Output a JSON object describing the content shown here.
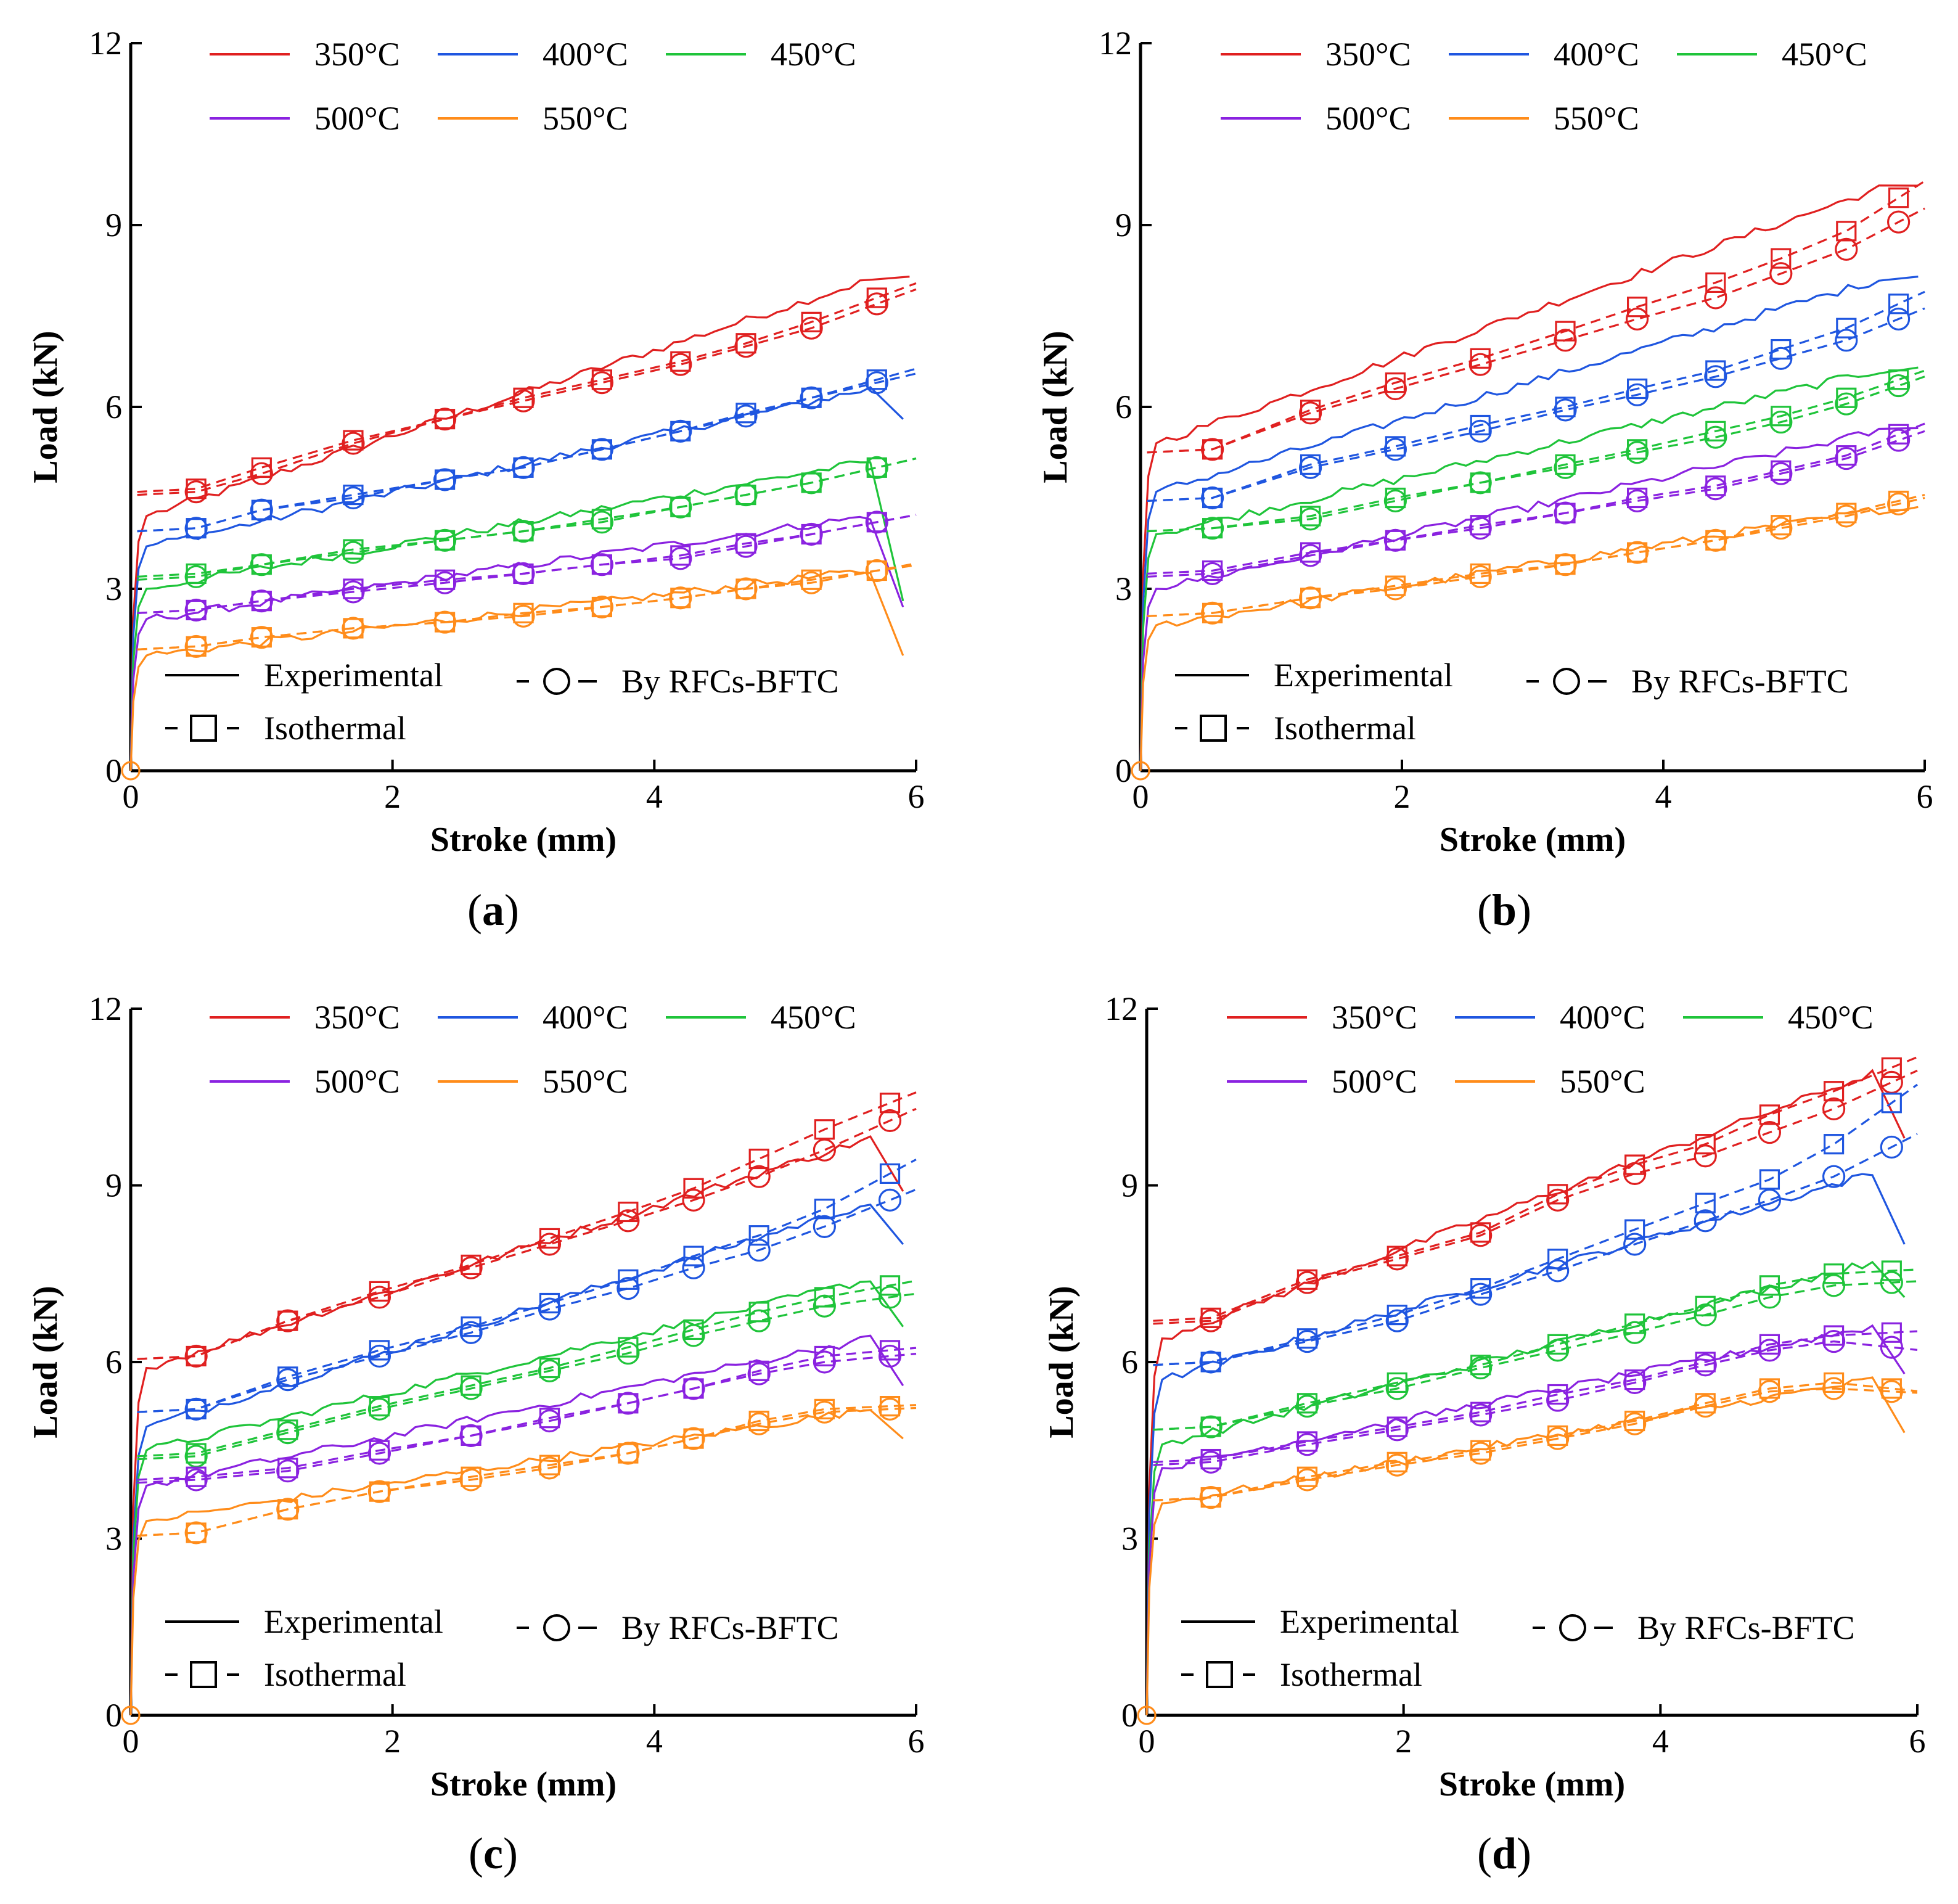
{
  "figure": {
    "caption_prefix": "(",
    "caption_suffix": ")",
    "series_colors": {
      "350°C": "#e02020",
      "400°C": "#1f56e0",
      "450°C": "#1fc43a",
      "500°C": "#8a22e0",
      "550°C": "#ff8c1a"
    },
    "temperature_legend": [
      "350°C",
      "400°C",
      "450°C",
      "500°C",
      "550°C"
    ],
    "method_legend": {
      "experimental": "Experimental",
      "rfcs": "By RFCs-BFTC",
      "isothermal": "Isothermal"
    }
  },
  "chart_data": [
    {
      "id": "a",
      "type": "line",
      "caption": "a",
      "xlabel": "Stroke (mm)",
      "ylabel": "Load (kN)",
      "xlim": [
        0,
        6
      ],
      "ylim": [
        0,
        12
      ],
      "xticks": [
        0,
        2,
        4,
        6
      ],
      "yticks": [
        0,
        3,
        6,
        9,
        12
      ],
      "x": [
        0.5,
        1.0,
        1.7,
        2.4,
        3.0,
        3.6,
        4.2,
        4.7,
        5.2,
        5.7
      ],
      "series": [
        {
          "name": "350°C",
          "start": 4.2,
          "end": 8.1,
          "drop": null,
          "rfcs": [
            4.6,
            4.9,
            5.4,
            5.8,
            6.1,
            6.4,
            6.7,
            7.0,
            7.3,
            7.7
          ],
          "isothermal": [
            4.65,
            5.0,
            5.45,
            5.8,
            6.15,
            6.45,
            6.75,
            7.05,
            7.4,
            7.8
          ]
        },
        {
          "name": "400°C",
          "start": 3.7,
          "end": 6.3,
          "drop": 5.8,
          "rfcs": [
            4.0,
            4.3,
            4.5,
            4.8,
            5.0,
            5.3,
            5.6,
            5.85,
            6.15,
            6.4
          ],
          "isothermal": [
            4.0,
            4.3,
            4.55,
            4.8,
            5.0,
            5.3,
            5.6,
            5.9,
            6.15,
            6.45
          ]
        },
        {
          "name": "450°C",
          "start": 3.0,
          "end": 5.1,
          "drop": 2.8,
          "rfcs": [
            3.2,
            3.4,
            3.6,
            3.8,
            3.95,
            4.1,
            4.35,
            4.55,
            4.75,
            5.0
          ],
          "isothermal": [
            3.25,
            3.4,
            3.65,
            3.8,
            3.95,
            4.15,
            4.35,
            4.55,
            4.75,
            5.0
          ]
        },
        {
          "name": "500°C",
          "start": 2.5,
          "end": 4.2,
          "drop": 2.7,
          "rfcs": [
            2.65,
            2.8,
            2.95,
            3.1,
            3.25,
            3.4,
            3.5,
            3.7,
            3.9,
            4.1
          ],
          "isothermal": [
            2.65,
            2.8,
            3.0,
            3.15,
            3.25,
            3.4,
            3.55,
            3.75,
            3.9,
            4.1
          ]
        },
        {
          "name": "550°C",
          "start": 1.9,
          "end": 3.3,
          "drop": 1.9,
          "rfcs": [
            2.05,
            2.2,
            2.35,
            2.45,
            2.55,
            2.7,
            2.85,
            3.0,
            3.1,
            3.3
          ],
          "isothermal": [
            2.05,
            2.2,
            2.35,
            2.45,
            2.6,
            2.7,
            2.85,
            3.0,
            3.15,
            3.3
          ]
        }
      ]
    },
    {
      "id": "b",
      "type": "line",
      "caption": "b",
      "xlabel": "Stroke (mm)",
      "ylabel": "Load (kN)",
      "xlim": [
        0,
        6
      ],
      "ylim": [
        0,
        12
      ],
      "xticks": [
        0,
        2,
        4,
        6
      ],
      "yticks": [
        0,
        3,
        6,
        9,
        12
      ],
      "x": [
        0.55,
        1.3,
        1.95,
        2.6,
        3.25,
        3.8,
        4.4,
        4.9,
        5.4,
        5.8
      ],
      "series": [
        {
          "name": "350°C",
          "start": 5.4,
          "end": 9.6,
          "drop": null,
          "rfcs": [
            5.3,
            5.9,
            6.3,
            6.7,
            7.1,
            7.45,
            7.8,
            8.2,
            8.6,
            9.05
          ],
          "isothermal": [
            5.3,
            5.95,
            6.4,
            6.8,
            7.25,
            7.65,
            8.05,
            8.45,
            8.9,
            9.45
          ]
        },
        {
          "name": "400°C",
          "start": 4.6,
          "end": 8.1,
          "drop": null,
          "rfcs": [
            4.5,
            5.0,
            5.3,
            5.6,
            5.95,
            6.2,
            6.5,
            6.8,
            7.1,
            7.45
          ],
          "isothermal": [
            4.5,
            5.05,
            5.35,
            5.7,
            6.0,
            6.3,
            6.6,
            6.95,
            7.3,
            7.7
          ]
        },
        {
          "name": "450°C",
          "start": 3.9,
          "end": 6.6,
          "drop": null,
          "rfcs": [
            4.0,
            4.15,
            4.45,
            4.75,
            5.0,
            5.25,
            5.5,
            5.75,
            6.05,
            6.35
          ],
          "isothermal": [
            4.0,
            4.2,
            4.5,
            4.75,
            5.05,
            5.3,
            5.6,
            5.85,
            6.15,
            6.45
          ]
        },
        {
          "name": "500°C",
          "start": 3.0,
          "end": 5.6,
          "drop": null,
          "rfcs": [
            3.25,
            3.55,
            3.8,
            4.0,
            4.25,
            4.45,
            4.65,
            4.9,
            5.15,
            5.45
          ],
          "isothermal": [
            3.3,
            3.6,
            3.8,
            4.05,
            4.25,
            4.5,
            4.7,
            4.95,
            5.2,
            5.55
          ]
        },
        {
          "name": "550°C",
          "start": 2.4,
          "end": 4.3,
          "drop": null,
          "rfcs": [
            2.6,
            2.85,
            3.0,
            3.2,
            3.4,
            3.6,
            3.8,
            4.0,
            4.2,
            4.4
          ],
          "isothermal": [
            2.6,
            2.85,
            3.05,
            3.25,
            3.4,
            3.6,
            3.8,
            4.05,
            4.25,
            4.45
          ]
        }
      ]
    },
    {
      "id": "c",
      "type": "line",
      "caption": "c",
      "xlabel": "Stroke (mm)",
      "ylabel": "Load (kN)",
      "xlim": [
        0,
        6
      ],
      "ylim": [
        0,
        12
      ],
      "xticks": [
        0,
        2,
        4,
        6
      ],
      "yticks": [
        0,
        3,
        6,
        9,
        12
      ],
      "x": [
        0.5,
        1.2,
        1.9,
        2.6,
        3.2,
        3.8,
        4.3,
        4.8,
        5.3,
        5.8
      ],
      "series": [
        {
          "name": "350°C",
          "start": 5.9,
          "end": 9.8,
          "drop": 8.9,
          "rfcs": [
            6.1,
            6.7,
            7.1,
            7.6,
            8.0,
            8.4,
            8.75,
            9.15,
            9.6,
            10.1
          ],
          "isothermal": [
            6.1,
            6.7,
            7.2,
            7.65,
            8.1,
            8.55,
            8.95,
            9.45,
            9.95,
            10.4
          ]
        },
        {
          "name": "400°C",
          "start": 4.9,
          "end": 8.7,
          "drop": 8.0,
          "rfcs": [
            5.2,
            5.7,
            6.1,
            6.5,
            6.9,
            7.25,
            7.6,
            7.9,
            8.3,
            8.75
          ],
          "isothermal": [
            5.2,
            5.75,
            6.2,
            6.6,
            7.0,
            7.4,
            7.8,
            8.15,
            8.6,
            9.2
          ]
        },
        {
          "name": "450°C",
          "start": 4.5,
          "end": 7.4,
          "drop": 6.6,
          "rfcs": [
            4.4,
            4.8,
            5.2,
            5.55,
            5.85,
            6.15,
            6.45,
            6.7,
            6.95,
            7.1
          ],
          "isothermal": [
            4.45,
            4.85,
            5.25,
            5.6,
            5.9,
            6.25,
            6.55,
            6.85,
            7.1,
            7.3
          ]
        },
        {
          "name": "500°C",
          "start": 3.9,
          "end": 6.4,
          "drop": 5.6,
          "rfcs": [
            4.0,
            4.15,
            4.45,
            4.75,
            5.0,
            5.3,
            5.55,
            5.8,
            6.0,
            6.1
          ],
          "isothermal": [
            4.05,
            4.2,
            4.5,
            4.75,
            5.05,
            5.3,
            5.55,
            5.85,
            6.1,
            6.2
          ]
        },
        {
          "name": "550°C",
          "start": 3.3,
          "end": 5.2,
          "drop": 4.7,
          "rfcs": [
            3.1,
            3.5,
            3.8,
            4.0,
            4.2,
            4.45,
            4.7,
            4.95,
            5.15,
            5.2
          ],
          "isothermal": [
            3.1,
            3.5,
            3.8,
            4.05,
            4.25,
            4.45,
            4.7,
            5.0,
            5.2,
            5.25
          ]
        }
      ]
    },
    {
      "id": "d",
      "type": "line",
      "caption": "d",
      "xlabel": "Stroke (mm)",
      "ylabel": "Load (kN)",
      "xlim": [
        0,
        6
      ],
      "ylim": [
        0,
        12
      ],
      "xticks": [
        0,
        2,
        4,
        6
      ],
      "yticks": [
        0,
        3,
        6,
        9,
        12
      ],
      "x": [
        0.5,
        1.25,
        1.95,
        2.6,
        3.2,
        3.8,
        4.35,
        4.85,
        5.35,
        5.8
      ],
      "series": [
        {
          "name": "350°C",
          "start": 6.4,
          "end": 10.9,
          "drop": 9.8,
          "rfcs": [
            6.7,
            7.35,
            7.75,
            8.15,
            8.75,
            9.2,
            9.5,
            9.9,
            10.3,
            10.75
          ],
          "isothermal": [
            6.75,
            7.4,
            7.8,
            8.2,
            8.85,
            9.35,
            9.7,
            10.2,
            10.6,
            11.0
          ]
        },
        {
          "name": "400°C",
          "start": 5.7,
          "end": 9.2,
          "drop": 8.0,
          "rfcs": [
            6.0,
            6.35,
            6.7,
            7.15,
            7.55,
            8.0,
            8.4,
            8.75,
            9.15,
            9.65
          ],
          "isothermal": [
            6.0,
            6.4,
            6.8,
            7.25,
            7.75,
            8.25,
            8.7,
            9.1,
            9.7,
            10.4
          ]
        },
        {
          "name": "450°C",
          "start": 4.6,
          "end": 7.7,
          "drop": 7.1,
          "rfcs": [
            4.9,
            5.25,
            5.55,
            5.9,
            6.2,
            6.5,
            6.8,
            7.1,
            7.3,
            7.35
          ],
          "isothermal": [
            4.9,
            5.3,
            5.65,
            5.95,
            6.3,
            6.65,
            6.95,
            7.3,
            7.5,
            7.55
          ]
        },
        {
          "name": "500°C",
          "start": 4.2,
          "end": 6.6,
          "drop": 5.8,
          "rfcs": [
            4.3,
            4.6,
            4.85,
            5.1,
            5.35,
            5.65,
            5.95,
            6.2,
            6.35,
            6.25
          ],
          "isothermal": [
            4.35,
            4.65,
            4.9,
            5.15,
            5.45,
            5.7,
            6.0,
            6.3,
            6.45,
            6.5
          ]
        },
        {
          "name": "550°C",
          "start": 3.6,
          "end": 5.7,
          "drop": 4.8,
          "rfcs": [
            3.7,
            4.0,
            4.25,
            4.45,
            4.7,
            4.95,
            5.25,
            5.5,
            5.55,
            5.5
          ],
          "isothermal": [
            3.7,
            4.05,
            4.3,
            4.5,
            4.75,
            5.0,
            5.3,
            5.55,
            5.65,
            5.55
          ]
        }
      ]
    }
  ]
}
